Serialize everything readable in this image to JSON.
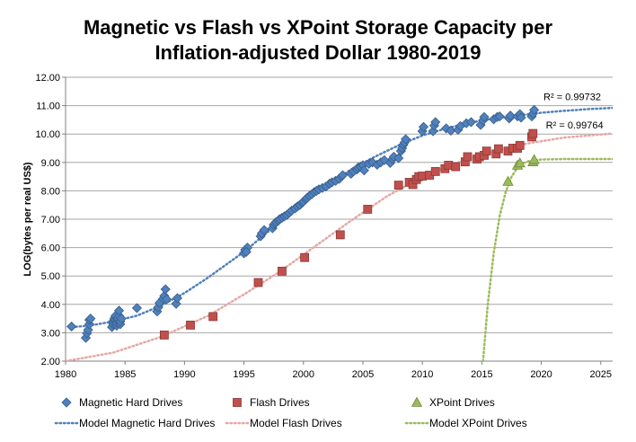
{
  "chart_data": {
    "type": "scatter",
    "title_line1": "Magnetic vs Flash vs XPoint Storage Capacity per",
    "title_line2": "Inflation-adjusted Dollar 1980-2019",
    "ylabel": "LOG(bytes per real US$)",
    "xlabel": "",
    "xlim": [
      1980,
      2026
    ],
    "ylim": [
      2.0,
      12.0
    ],
    "x_ticks": [
      "1980",
      "1985",
      "1990",
      "1995",
      "2000",
      "2005",
      "2010",
      "2015",
      "2020",
      "2025"
    ],
    "y_ticks": [
      "2.00",
      "3.00",
      "4.00",
      "5.00",
      "6.00",
      "7.00",
      "8.00",
      "9.00",
      "10.00",
      "11.00",
      "12.00"
    ],
    "grid": "horizontal",
    "legend_position": "bottom",
    "annotations": [
      {
        "text": "R² = 0.99732",
        "x": 2022.6,
        "y": 11.2,
        "color": "#000000"
      },
      {
        "text": "R² = 0.99764",
        "x": 2022.8,
        "y": 10.2,
        "color": "#000000"
      }
    ],
    "series": [
      {
        "name": "Magnetic Hard Drives",
        "marker": "diamond",
        "color": "#4f81bd",
        "stroke": "#385d8a",
        "points": [
          [
            1980.5,
            3.22
          ],
          [
            1981.7,
            2.82
          ],
          [
            1981.8,
            2.98
          ],
          [
            1981.9,
            3.1
          ],
          [
            1982.0,
            3.3
          ],
          [
            1982.0,
            3.45
          ],
          [
            1982.1,
            3.5
          ],
          [
            1983.9,
            3.2
          ],
          [
            1984.0,
            3.3
          ],
          [
            1984.0,
            3.4
          ],
          [
            1984.1,
            3.45
          ],
          [
            1984.1,
            3.5
          ],
          [
            1984.2,
            3.55
          ],
          [
            1984.2,
            3.6
          ],
          [
            1984.3,
            3.25
          ],
          [
            1984.3,
            3.35
          ],
          [
            1984.4,
            3.42
          ],
          [
            1984.4,
            3.5
          ],
          [
            1984.5,
            3.6
          ],
          [
            1984.5,
            3.78
          ],
          [
            1984.6,
            3.3
          ],
          [
            1984.6,
            3.4
          ],
          [
            1984.7,
            3.5
          ],
          [
            1986.0,
            3.87
          ],
          [
            1987.7,
            3.75
          ],
          [
            1987.8,
            3.9
          ],
          [
            1987.9,
            4.05
          ],
          [
            1988.2,
            4.2
          ],
          [
            1988.3,
            4.3
          ],
          [
            1988.4,
            4.53
          ],
          [
            1988.5,
            4.18
          ],
          [
            1989.3,
            4.02
          ],
          [
            1989.4,
            4.22
          ],
          [
            1995.0,
            5.8
          ],
          [
            1995.1,
            5.92
          ],
          [
            1995.3,
            6.0
          ],
          [
            1995.2,
            5.85
          ],
          [
            1996.4,
            6.4
          ],
          [
            1996.5,
            6.5
          ],
          [
            1996.7,
            6.62
          ],
          [
            1997.4,
            6.68
          ],
          [
            1997.5,
            6.8
          ],
          [
            1997.6,
            6.85
          ],
          [
            1997.7,
            6.9
          ],
          [
            1997.9,
            6.95
          ],
          [
            1998.0,
            7.0
          ],
          [
            1998.2,
            7.05
          ],
          [
            1998.4,
            7.1
          ],
          [
            1998.6,
            7.15
          ],
          [
            1998.8,
            7.22
          ],
          [
            1999.0,
            7.3
          ],
          [
            1999.3,
            7.38
          ],
          [
            1999.5,
            7.45
          ],
          [
            1999.7,
            7.5
          ],
          [
            1999.9,
            7.58
          ],
          [
            2000.0,
            7.62
          ],
          [
            2000.2,
            7.7
          ],
          [
            2000.3,
            7.75
          ],
          [
            2000.5,
            7.82
          ],
          [
            2000.7,
            7.88
          ],
          [
            2000.9,
            7.95
          ],
          [
            2001.1,
            8.0
          ],
          [
            2001.3,
            8.05
          ],
          [
            2001.6,
            8.1
          ],
          [
            2001.9,
            8.15
          ],
          [
            2002.2,
            8.25
          ],
          [
            2002.4,
            8.3
          ],
          [
            2002.7,
            8.35
          ],
          [
            2003.0,
            8.42
          ],
          [
            2003.2,
            8.5
          ],
          [
            2003.3,
            8.55
          ],
          [
            2004.0,
            8.6
          ],
          [
            2004.2,
            8.68
          ],
          [
            2004.5,
            8.75
          ],
          [
            2004.6,
            8.82
          ],
          [
            2004.8,
            8.85
          ],
          [
            2005.0,
            8.9
          ],
          [
            2005.1,
            8.72
          ],
          [
            2005.5,
            8.95
          ],
          [
            2005.8,
            9.0
          ],
          [
            2006.2,
            8.92
          ],
          [
            2006.5,
            9.0
          ],
          [
            2006.8,
            9.08
          ],
          [
            2007.3,
            8.98
          ],
          [
            2007.5,
            9.12
          ],
          [
            2007.6,
            9.2
          ],
          [
            2008.0,
            9.15
          ],
          [
            2008.2,
            9.4
          ],
          [
            2008.3,
            9.5
          ],
          [
            2008.4,
            9.62
          ],
          [
            2008.5,
            9.7
          ],
          [
            2008.6,
            9.82
          ],
          [
            2010.0,
            10.1
          ],
          [
            2010.1,
            10.25
          ],
          [
            2010.9,
            10.1
          ],
          [
            2011.0,
            10.3
          ],
          [
            2011.1,
            10.42
          ],
          [
            2012.0,
            10.2
          ],
          [
            2012.4,
            10.12
          ],
          [
            2013.0,
            10.15
          ],
          [
            2013.2,
            10.28
          ],
          [
            2013.7,
            10.38
          ],
          [
            2014.1,
            10.42
          ],
          [
            2014.9,
            10.32
          ],
          [
            2015.1,
            10.48
          ],
          [
            2015.2,
            10.6
          ],
          [
            2016.0,
            10.52
          ],
          [
            2016.3,
            10.6
          ],
          [
            2016.5,
            10.62
          ],
          [
            2017.3,
            10.55
          ],
          [
            2017.4,
            10.65
          ],
          [
            2018.0,
            10.62
          ],
          [
            2018.2,
            10.7
          ],
          [
            2018.3,
            10.58
          ],
          [
            2019.2,
            10.62
          ],
          [
            2019.3,
            10.72
          ],
          [
            2019.4,
            10.85
          ]
        ]
      },
      {
        "name": "Flash Drives",
        "marker": "square",
        "color": "#c0504d",
        "stroke": "#8c3836",
        "points": [
          [
            1988.3,
            2.92
          ],
          [
            1990.5,
            3.27
          ],
          [
            1992.4,
            3.57
          ],
          [
            1996.2,
            4.77
          ],
          [
            1998.2,
            5.17
          ],
          [
            2000.1,
            5.65
          ],
          [
            2003.1,
            6.45
          ],
          [
            2005.4,
            7.35
          ],
          [
            2008.0,
            8.2
          ],
          [
            2008.9,
            8.3
          ],
          [
            2009.2,
            8.22
          ],
          [
            2009.5,
            8.4
          ],
          [
            2009.7,
            8.5
          ],
          [
            2010.0,
            8.52
          ],
          [
            2010.6,
            8.55
          ],
          [
            2011.1,
            8.68
          ],
          [
            2011.9,
            8.78
          ],
          [
            2012.2,
            8.9
          ],
          [
            2012.8,
            8.85
          ],
          [
            2013.6,
            9.02
          ],
          [
            2013.8,
            9.2
          ],
          [
            2014.6,
            9.12
          ],
          [
            2014.8,
            9.2
          ],
          [
            2015.2,
            9.25
          ],
          [
            2015.4,
            9.4
          ],
          [
            2016.2,
            9.3
          ],
          [
            2016.4,
            9.48
          ],
          [
            2017.2,
            9.4
          ],
          [
            2017.6,
            9.5
          ],
          [
            2018.0,
            9.5
          ],
          [
            2018.2,
            9.6
          ],
          [
            2019.2,
            9.9
          ],
          [
            2019.3,
            10.02
          ]
        ]
      },
      {
        "name": "XPoint Drives",
        "marker": "triangle",
        "color": "#9bbb59",
        "stroke": "#71893f",
        "points": [
          [
            2017.2,
            8.33
          ],
          [
            2018.0,
            8.9
          ],
          [
            2018.2,
            8.98
          ],
          [
            2019.3,
            9.02
          ],
          [
            2019.4,
            9.1
          ]
        ]
      },
      {
        "name": "Model Magnetic Hard Drives",
        "style": "dotted-line",
        "color": "#4f81bd",
        "points": [
          [
            1980.5,
            3.2
          ],
          [
            1982,
            3.25
          ],
          [
            1984,
            3.4
          ],
          [
            1986,
            3.6
          ],
          [
            1988,
            3.95
          ],
          [
            1990,
            4.4
          ],
          [
            1992,
            4.95
          ],
          [
            1994,
            5.55
          ],
          [
            1995,
            5.85
          ],
          [
            1996,
            6.2
          ],
          [
            1998,
            6.9
          ],
          [
            2000,
            7.6
          ],
          [
            2002,
            8.2
          ],
          [
            2004,
            8.75
          ],
          [
            2006,
            9.2
          ],
          [
            2008,
            9.6
          ],
          [
            2010,
            9.95
          ],
          [
            2012,
            10.2
          ],
          [
            2014,
            10.4
          ],
          [
            2016,
            10.55
          ],
          [
            2018,
            10.65
          ],
          [
            2020,
            10.75
          ],
          [
            2022,
            10.82
          ],
          [
            2024,
            10.88
          ],
          [
            2026,
            10.92
          ]
        ]
      },
      {
        "name": "Model Flash Drives",
        "style": "dotted-line",
        "color": "#e6a7a5",
        "points": [
          [
            1980,
            2.0
          ],
          [
            1984,
            2.3
          ],
          [
            1988,
            2.85
          ],
          [
            1992,
            3.6
          ],
          [
            1995,
            4.35
          ],
          [
            1998,
            5.15
          ],
          [
            2001,
            6.05
          ],
          [
            2004,
            6.95
          ],
          [
            2007,
            7.8
          ],
          [
            2010,
            8.5
          ],
          [
            2013,
            9.0
          ],
          [
            2016,
            9.4
          ],
          [
            2019,
            9.68
          ],
          [
            2022,
            9.88
          ],
          [
            2026,
            10.02
          ]
        ]
      },
      {
        "name": "Model XPoint Drives",
        "style": "dotted-line",
        "color": "#9bbb59",
        "points": [
          [
            2015.1,
            2.0
          ],
          [
            2015.5,
            4.0
          ],
          [
            2016.0,
            5.8
          ],
          [
            2016.5,
            7.1
          ],
          [
            2017.0,
            7.95
          ],
          [
            2017.5,
            8.5
          ],
          [
            2018.0,
            8.82
          ],
          [
            2018.5,
            8.98
          ],
          [
            2019.0,
            9.05
          ],
          [
            2020,
            9.1
          ],
          [
            2022,
            9.12
          ],
          [
            2026,
            9.12
          ]
        ]
      }
    ],
    "legend": [
      {
        "label": "Magnetic Hard Drives",
        "marker": "diamond",
        "color": "#4f81bd"
      },
      {
        "label": "Flash Drives",
        "marker": "square",
        "color": "#c0504d"
      },
      {
        "label": "XPoint Drives",
        "marker": "triangle",
        "color": "#9bbb59"
      },
      {
        "label": "Model Magnetic Hard Drives",
        "marker": "dotted-line",
        "color": "#4f81bd"
      },
      {
        "label": "Model Flash Drives",
        "marker": "dotted-line",
        "color": "#e6a7a5"
      },
      {
        "label": "Model XPoint Drives",
        "marker": "dotted-line",
        "color": "#9bbb59"
      }
    ]
  }
}
